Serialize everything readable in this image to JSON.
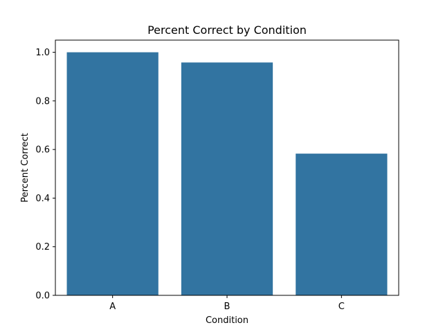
{
  "chart_data": {
    "type": "bar",
    "title": "Percent Correct by Condition",
    "xlabel": "Condition",
    "ylabel": "Percent Correct",
    "categories": [
      "A",
      "B",
      "C"
    ],
    "values": [
      1.0,
      0.958,
      0.583
    ],
    "ylim": [
      0,
      1.05
    ],
    "yticks": [
      "0.0",
      "0.2",
      "0.4",
      "0.6",
      "0.8",
      "1.0"
    ],
    "grid": false,
    "legend": "none",
    "bar_color": "#3274a1"
  }
}
